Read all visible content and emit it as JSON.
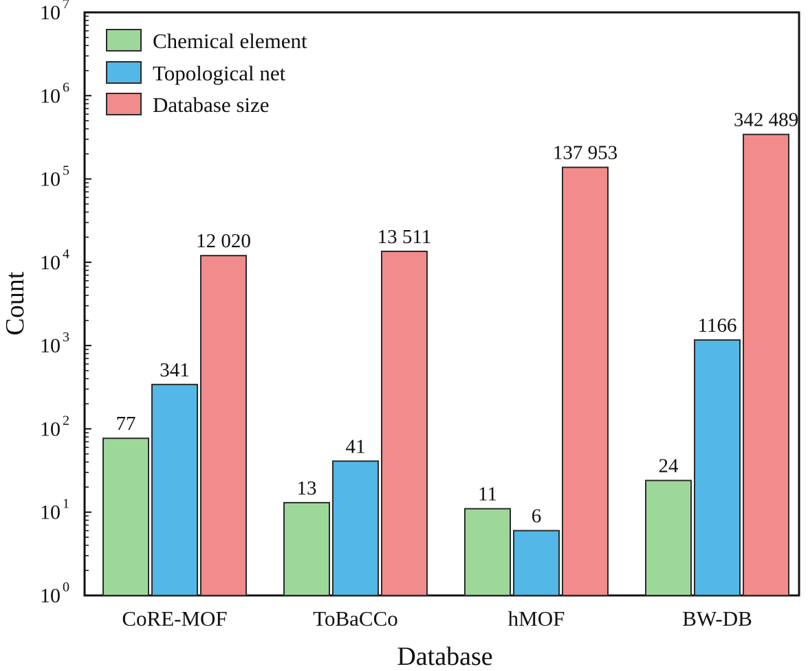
{
  "chart_data": {
    "type": "bar",
    "title": "",
    "xlabel": "Database",
    "ylabel": "Count",
    "yscale": "log",
    "ylim": [
      1,
      10000000
    ],
    "grid": false,
    "legend_position": "top-left",
    "categories": [
      "CoRE-MOF",
      "ToBaCCo",
      "hMOF",
      "BW-DB"
    ],
    "y_ticks": [
      {
        "base": "10",
        "exp": "0"
      },
      {
        "base": "10",
        "exp": "1"
      },
      {
        "base": "10",
        "exp": "2"
      },
      {
        "base": "10",
        "exp": "3"
      },
      {
        "base": "10",
        "exp": "4"
      },
      {
        "base": "10",
        "exp": "5"
      },
      {
        "base": "10",
        "exp": "6"
      },
      {
        "base": "10",
        "exp": "7"
      }
    ],
    "series": [
      {
        "name": "Chemical element",
        "color": "#9ed79a",
        "values": [
          77,
          13,
          11,
          24
        ],
        "labels": [
          "77",
          "13",
          "11",
          "24"
        ]
      },
      {
        "name": "Topological net",
        "color": "#53b7e8",
        "values": [
          341,
          41,
          6,
          1166
        ],
        "labels": [
          "341",
          "41",
          "6",
          "1166"
        ]
      },
      {
        "name": "Database size",
        "color": "#f28b8c",
        "values": [
          12020,
          13511,
          137953,
          342489
        ],
        "labels": [
          "12 020",
          "13 511",
          "137 953",
          "342 489"
        ]
      }
    ]
  }
}
